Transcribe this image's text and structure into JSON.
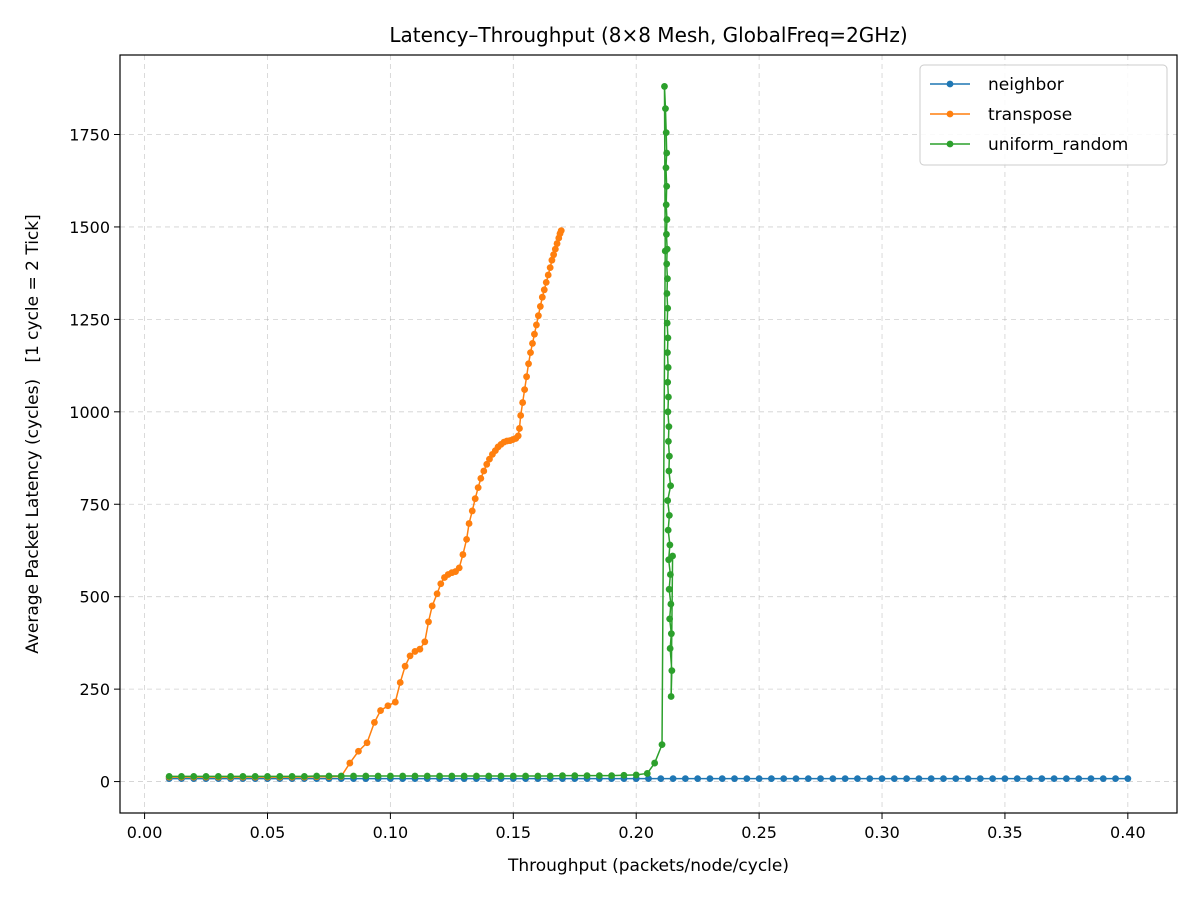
{
  "chart_data": {
    "type": "line",
    "title": "Latency–Throughput (8×8 Mesh, GlobalFreq=2GHz)",
    "xlabel": "Throughput (packets/node/cycle)",
    "ylabel": "Average Packet Latency (cycles)   [1 cycle = 2 Tick]",
    "xlim": [
      -0.01,
      0.42
    ],
    "ylim": [
      -85,
      1965
    ],
    "xticks": [
      0.0,
      0.05,
      0.1,
      0.15,
      0.2,
      0.25,
      0.3,
      0.35,
      0.4
    ],
    "xtick_labels": [
      "0.00",
      "0.05",
      "0.10",
      "0.15",
      "0.20",
      "0.25",
      "0.30",
      "0.35",
      "0.40"
    ],
    "yticks": [
      0,
      250,
      500,
      750,
      1000,
      1250,
      1500,
      1750
    ],
    "ytick_labels": [
      "0",
      "250",
      "500",
      "750",
      "1000",
      "1250",
      "1500",
      "1750"
    ],
    "grid": true,
    "legend_position": "top-right",
    "series": [
      {
        "name": "neighbor",
        "color": "#1f77b4",
        "x": [
          0.01,
          0.015,
          0.02,
          0.025,
          0.03,
          0.035,
          0.04,
          0.045,
          0.05,
          0.055,
          0.06,
          0.065,
          0.07,
          0.075,
          0.08,
          0.085,
          0.09,
          0.095,
          0.1,
          0.105,
          0.11,
          0.115,
          0.12,
          0.125,
          0.13,
          0.135,
          0.14,
          0.145,
          0.15,
          0.155,
          0.16,
          0.165,
          0.17,
          0.175,
          0.18,
          0.185,
          0.19,
          0.195,
          0.2,
          0.205,
          0.21,
          0.215,
          0.22,
          0.225,
          0.23,
          0.235,
          0.24,
          0.245,
          0.25,
          0.255,
          0.26,
          0.265,
          0.27,
          0.275,
          0.28,
          0.285,
          0.29,
          0.295,
          0.3,
          0.305,
          0.31,
          0.315,
          0.32,
          0.325,
          0.33,
          0.335,
          0.34,
          0.345,
          0.35,
          0.355,
          0.36,
          0.365,
          0.37,
          0.375,
          0.38,
          0.385,
          0.39,
          0.395,
          0.4
        ],
        "y": [
          8,
          8,
          8,
          8,
          8,
          8,
          8,
          8,
          8,
          8,
          8,
          8,
          8,
          8,
          8,
          8,
          8,
          8,
          8,
          8,
          8,
          8,
          8,
          8,
          8,
          8,
          8,
          8,
          8,
          8,
          8,
          8,
          8,
          8,
          8,
          8,
          8,
          8,
          8,
          8,
          8,
          8,
          8,
          8,
          8,
          8,
          8,
          8,
          8,
          8,
          8,
          8,
          8,
          8,
          8,
          8,
          8,
          8,
          8,
          8,
          8,
          8,
          8,
          8,
          8,
          8,
          8,
          8,
          8,
          8,
          8,
          8,
          8,
          8,
          8,
          8,
          8,
          8,
          8
        ]
      },
      {
        "name": "transpose",
        "color": "#ff7f0e",
        "x": [
          0.01,
          0.015,
          0.02,
          0.025,
          0.03,
          0.035,
          0.04,
          0.045,
          0.05,
          0.055,
          0.06,
          0.065,
          0.07,
          0.075,
          0.08,
          0.0835,
          0.087,
          0.0905,
          0.0935,
          0.096,
          0.099,
          0.102,
          0.104,
          0.106,
          0.108,
          0.11,
          0.112,
          0.114,
          0.1155,
          0.117,
          0.119,
          0.1205,
          0.122,
          0.1235,
          0.125,
          0.1265,
          0.128,
          0.1295,
          0.131,
          0.132,
          0.1333,
          0.1345,
          0.1357,
          0.1368,
          0.138,
          0.1392,
          0.1403,
          0.1415,
          0.1427,
          0.1438,
          0.145,
          0.1462,
          0.1474,
          0.1486,
          0.1498,
          0.151,
          0.152,
          0.1525,
          0.153,
          0.1538,
          0.1546,
          0.1554,
          0.1562,
          0.157,
          0.1578,
          0.1586,
          0.1594,
          0.1602,
          0.161,
          0.1618,
          0.1626,
          0.1634,
          0.1642,
          0.165,
          0.1657,
          0.1664,
          0.1671,
          0.1678,
          0.1685,
          0.169,
          0.1695
        ],
        "y": [
          12,
          12,
          12,
          12,
          12,
          12,
          12,
          12,
          12,
          12,
          12,
          12,
          13,
          13,
          14,
          50,
          82,
          105,
          160,
          192,
          205,
          215,
          268,
          312,
          340,
          352,
          358,
          378,
          432,
          475,
          508,
          535,
          552,
          560,
          565,
          568,
          578,
          614,
          655,
          698,
          732,
          765,
          795,
          820,
          840,
          858,
          872,
          885,
          895,
          905,
          912,
          918,
          921,
          922,
          925,
          928,
          935,
          955,
          990,
          1025,
          1060,
          1095,
          1130,
          1160,
          1185,
          1210,
          1235,
          1260,
          1285,
          1310,
          1330,
          1350,
          1370,
          1390,
          1410,
          1425,
          1440,
          1455,
          1470,
          1482,
          1490
        ]
      },
      {
        "name": "uniform_random",
        "color": "#2ca02c",
        "x": [
          0.01,
          0.015,
          0.02,
          0.025,
          0.03,
          0.035,
          0.04,
          0.045,
          0.05,
          0.055,
          0.06,
          0.065,
          0.07,
          0.075,
          0.08,
          0.085,
          0.09,
          0.095,
          0.1,
          0.105,
          0.11,
          0.115,
          0.12,
          0.125,
          0.13,
          0.135,
          0.14,
          0.145,
          0.15,
          0.155,
          0.16,
          0.165,
          0.17,
          0.175,
          0.18,
          0.185,
          0.19,
          0.195,
          0.2,
          0.2045,
          0.2075,
          0.2105,
          0.2118,
          0.2115,
          0.2119,
          0.2122,
          0.2124,
          0.2121,
          0.2124,
          0.2122,
          0.2125,
          0.2123,
          0.2126,
          0.2124,
          0.2127,
          0.2125,
          0.2128,
          0.2126,
          0.2129,
          0.2127,
          0.213,
          0.2128,
          0.2131,
          0.2129,
          0.2133,
          0.2131,
          0.2135,
          0.2133,
          0.214,
          0.2128,
          0.2135,
          0.213,
          0.2137,
          0.2132,
          0.2139,
          0.2134,
          0.2141,
          0.2136,
          0.2143,
          0.2138,
          0.2145,
          0.2142,
          0.2148
        ],
        "y": [
          14,
          14,
          14,
          14,
          14,
          14,
          14,
          14,
          14,
          14,
          14,
          14,
          15,
          15,
          15,
          15,
          15,
          15,
          15,
          15,
          15,
          15,
          15,
          15,
          15,
          15,
          15,
          15,
          15,
          15,
          15,
          15,
          16,
          16,
          16,
          16,
          16,
          17,
          18,
          22,
          50,
          100,
          1435,
          1880,
          1820,
          1755,
          1700,
          1660,
          1610,
          1560,
          1520,
          1480,
          1440,
          1400,
          1360,
          1320,
          1280,
          1240,
          1200,
          1160,
          1120,
          1080,
          1040,
          1000,
          960,
          920,
          880,
          840,
          800,
          760,
          720,
          680,
          640,
          600,
          560,
          520,
          480,
          440,
          400,
          360,
          300,
          230,
          610
        ]
      }
    ]
  }
}
